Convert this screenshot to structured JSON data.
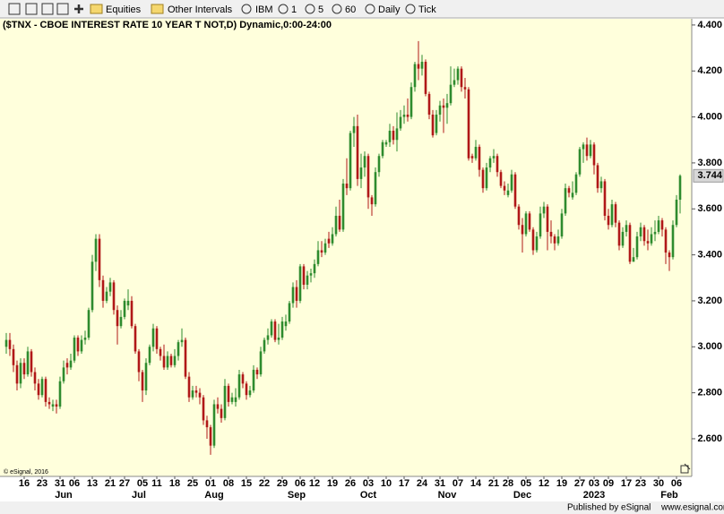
{
  "toolbar": {
    "items": [
      "Equities",
      "Other Intervals",
      "IBM",
      "1",
      "5",
      "60",
      "Daily",
      "Tick"
    ]
  },
  "footer": {
    "publisher": "Published by eSignal",
    "url": "www.esignal.com"
  },
  "chart_data": {
    "type": "candlestick",
    "title": "($TNX - CBOE INTEREST RATE 10 YEAR T NOT,D) Dynamic,0:00-24:00",
    "copyright": "© eSignal, 2016",
    "up_color": "#2e8b2e",
    "down_color": "#b01818",
    "ylim": [
      2.444,
      4.423
    ],
    "yticks": [
      {
        "value": 2.6,
        "label": "2.600"
      },
      {
        "value": 2.8,
        "label": "2.800"
      },
      {
        "value": 3.0,
        "label": "3.000"
      },
      {
        "value": 3.2,
        "label": "3.200"
      },
      {
        "value": 3.4,
        "label": "3.400"
      },
      {
        "value": 3.6,
        "label": "3.600"
      },
      {
        "value": 3.8,
        "label": "3.800"
      },
      {
        "value": 4.0,
        "label": "4.000"
      },
      {
        "value": 4.2,
        "label": "4.200"
      },
      {
        "value": 4.4,
        "label": "4.400"
      }
    ],
    "categories": [
      null,
      null,
      null,
      null,
      null,
      "16",
      null,
      null,
      null,
      null,
      "23",
      null,
      null,
      null,
      null,
      "31",
      null,
      null,
      null,
      "06",
      null,
      null,
      null,
      null,
      "13",
      null,
      null,
      null,
      null,
      "21",
      null,
      null,
      null,
      "27",
      null,
      null,
      null,
      null,
      "05",
      null,
      null,
      null,
      "11",
      null,
      null,
      null,
      null,
      "18",
      null,
      null,
      null,
      null,
      "25",
      null,
      null,
      null,
      null,
      "01",
      null,
      null,
      null,
      null,
      "08",
      null,
      null,
      null,
      null,
      "15",
      null,
      null,
      null,
      null,
      "22",
      null,
      null,
      null,
      null,
      "29",
      null,
      null,
      null,
      null,
      "06",
      null,
      null,
      null,
      "12",
      null,
      null,
      null,
      null,
      "19",
      null,
      null,
      null,
      null,
      "26",
      null,
      null,
      null,
      null,
      "03",
      null,
      null,
      null,
      null,
      "10",
      null,
      null,
      null,
      null,
      "17",
      null,
      null,
      null,
      null,
      "24",
      null,
      null,
      null,
      null,
      "31",
      null,
      null,
      null,
      null,
      "07",
      null,
      null,
      null,
      null,
      "14",
      null,
      null,
      null,
      null,
      "21",
      null,
      null,
      null,
      "28",
      null,
      null,
      null,
      null,
      "05",
      null,
      null,
      null,
      null,
      "12",
      null,
      null,
      null,
      null,
      "19",
      null,
      null,
      null,
      null,
      "27",
      null,
      null,
      null,
      "03",
      null,
      null,
      null,
      "09",
      null,
      null,
      null,
      null,
      "17",
      null,
      null,
      null,
      "23",
      null,
      null,
      null,
      null,
      "30",
      null,
      null,
      null,
      null,
      "06",
      null
    ],
    "months": [
      null,
      null,
      null,
      null,
      null,
      null,
      null,
      null,
      null,
      null,
      null,
      null,
      null,
      null,
      null,
      null,
      "Jun",
      null,
      null,
      null,
      null,
      null,
      null,
      null,
      null,
      null,
      null,
      null,
      null,
      null,
      null,
      null,
      null,
      null,
      null,
      null,
      null,
      "Jul",
      null,
      null,
      null,
      null,
      null,
      null,
      null,
      null,
      null,
      null,
      null,
      null,
      null,
      null,
      null,
      null,
      null,
      null,
      null,
      null,
      "Aug",
      null,
      null,
      null,
      null,
      null,
      null,
      null,
      null,
      null,
      null,
      null,
      null,
      null,
      null,
      null,
      null,
      null,
      null,
      null,
      null,
      null,
      null,
      "Sep",
      null,
      null,
      null,
      null,
      null,
      null,
      null,
      null,
      null,
      null,
      null,
      null,
      null,
      null,
      null,
      null,
      null,
      null,
      null,
      "Oct",
      null,
      null,
      null,
      null,
      null,
      null,
      null,
      null,
      null,
      null,
      null,
      null,
      null,
      null,
      null,
      null,
      null,
      null,
      null,
      null,
      null,
      "Nov",
      null,
      null,
      null,
      null,
      null,
      null,
      null,
      null,
      null,
      null,
      null,
      null,
      null,
      null,
      null,
      null,
      null,
      null,
      null,
      null,
      "Dec",
      null,
      null,
      null,
      null,
      null,
      null,
      null,
      null,
      null,
      null,
      null,
      null,
      null,
      null,
      null,
      null,
      null,
      null,
      null,
      "2023",
      null,
      null,
      null,
      null,
      null,
      null,
      null,
      null,
      null,
      null,
      null,
      null,
      null,
      null,
      null,
      null,
      null,
      null,
      null,
      null,
      "Feb",
      null,
      null,
      null
    ],
    "ohlc": [
      [
        3.0,
        3.06,
        2.97,
        3.03
      ],
      [
        3.03,
        3.06,
        2.96,
        2.99
      ],
      [
        2.99,
        3.01,
        2.89,
        2.92
      ],
      [
        2.92,
        2.94,
        2.81,
        2.84
      ],
      [
        2.84,
        2.95,
        2.82,
        2.93
      ],
      [
        2.93,
        2.95,
        2.86,
        2.88
      ],
      [
        2.88,
        3.0,
        2.87,
        2.98
      ],
      [
        2.98,
        2.99,
        2.87,
        2.89
      ],
      [
        2.89,
        2.91,
        2.81,
        2.84
      ],
      [
        2.84,
        2.86,
        2.77,
        2.79
      ],
      [
        2.79,
        2.87,
        2.78,
        2.86
      ],
      [
        2.86,
        2.87,
        2.74,
        2.76
      ],
      [
        2.76,
        2.78,
        2.73,
        2.75
      ],
      [
        2.74,
        2.77,
        2.72,
        2.75
      ],
      [
        2.75,
        2.77,
        2.71,
        2.74
      ],
      [
        2.74,
        2.87,
        2.73,
        2.85
      ],
      [
        2.85,
        2.94,
        2.84,
        2.91
      ],
      [
        2.93,
        2.95,
        2.88,
        2.91
      ],
      [
        2.91,
        2.97,
        2.9,
        2.94
      ],
      [
        2.94,
        3.05,
        2.93,
        3.04
      ],
      [
        3.04,
        3.05,
        2.96,
        2.98
      ],
      [
        2.98,
        3.05,
        2.97,
        3.03
      ],
      [
        3.03,
        3.07,
        3.01,
        3.04
      ],
      [
        3.04,
        3.17,
        3.03,
        3.16
      ],
      [
        3.16,
        3.4,
        3.15,
        3.37
      ],
      [
        3.37,
        3.49,
        3.33,
        3.47
      ],
      [
        3.47,
        3.49,
        3.26,
        3.29
      ],
      [
        3.29,
        3.31,
        3.17,
        3.2
      ],
      [
        3.2,
        3.26,
        3.19,
        3.24
      ],
      [
        3.24,
        3.3,
        3.22,
        3.28
      ],
      [
        3.28,
        3.29,
        3.14,
        3.16
      ],
      [
        3.16,
        3.18,
        3.01,
        3.09
      ],
      [
        3.09,
        3.16,
        3.08,
        3.13
      ],
      [
        3.13,
        3.21,
        3.12,
        3.2
      ],
      [
        3.18,
        3.25,
        3.16,
        3.2
      ],
      [
        3.2,
        3.22,
        3.08,
        3.09
      ],
      [
        3.09,
        3.1,
        2.97,
        2.98
      ],
      [
        2.98,
        2.99,
        2.85,
        2.89
      ],
      [
        2.89,
        2.9,
        2.76,
        2.81
      ],
      [
        2.81,
        2.95,
        2.79,
        2.93
      ],
      [
        2.93,
        3.01,
        2.92,
        3.0
      ],
      [
        3.0,
        3.1,
        2.98,
        3.08
      ],
      [
        3.08,
        3.09,
        2.97,
        2.99
      ],
      [
        2.99,
        3.0,
        2.94,
        2.96
      ],
      [
        2.96,
        3.01,
        2.9,
        2.91
      ],
      [
        2.91,
        2.98,
        2.9,
        2.96
      ],
      [
        2.96,
        2.97,
        2.91,
        2.92
      ],
      [
        2.92,
        2.99,
        2.91,
        2.96
      ],
      [
        2.96,
        3.03,
        2.94,
        3.02
      ],
      [
        3.02,
        3.08,
        3.0,
        3.03
      ],
      [
        3.03,
        3.04,
        2.86,
        2.87
      ],
      [
        2.87,
        2.89,
        2.76,
        2.78
      ],
      [
        2.78,
        2.83,
        2.77,
        2.81
      ],
      [
        2.81,
        2.83,
        2.78,
        2.8
      ],
      [
        2.8,
        2.82,
        2.75,
        2.78
      ],
      [
        2.78,
        2.79,
        2.66,
        2.68
      ],
      [
        2.68,
        2.7,
        2.6,
        2.65
      ],
      [
        2.65,
        2.66,
        2.53,
        2.57
      ],
      [
        2.57,
        2.77,
        2.56,
        2.75
      ],
      [
        2.75,
        2.78,
        2.71,
        2.73
      ],
      [
        2.73,
        2.75,
        2.67,
        2.69
      ],
      [
        2.69,
        2.86,
        2.68,
        2.83
      ],
      [
        2.83,
        2.84,
        2.74,
        2.76
      ],
      [
        2.76,
        2.8,
        2.75,
        2.78
      ],
      [
        2.76,
        2.82,
        2.74,
        2.78
      ],
      [
        2.78,
        2.9,
        2.77,
        2.88
      ],
      [
        2.88,
        2.89,
        2.82,
        2.84
      ],
      [
        2.84,
        2.85,
        2.77,
        2.79
      ],
      [
        2.79,
        2.83,
        2.78,
        2.81
      ],
      [
        2.81,
        2.92,
        2.8,
        2.9
      ],
      [
        2.9,
        2.91,
        2.86,
        2.88
      ],
      [
        2.88,
        3.0,
        2.87,
        2.98
      ],
      [
        2.98,
        3.04,
        2.97,
        3.03
      ],
      [
        3.03,
        3.08,
        3.01,
        3.05
      ],
      [
        3.05,
        3.12,
        3.04,
        3.11
      ],
      [
        3.11,
        3.12,
        3.02,
        3.03
      ],
      [
        3.03,
        3.1,
        3.01,
        3.04
      ],
      [
        3.04,
        3.13,
        3.03,
        3.11
      ],
      [
        3.09,
        3.14,
        3.07,
        3.11
      ],
      [
        3.11,
        3.2,
        3.1,
        3.19
      ],
      [
        3.19,
        3.28,
        3.17,
        3.26
      ],
      [
        3.26,
        3.29,
        3.17,
        3.2
      ],
      [
        3.2,
        3.36,
        3.19,
        3.35
      ],
      [
        3.35,
        3.36,
        3.25,
        3.27
      ],
      [
        3.27,
        3.33,
        3.25,
        3.31
      ],
      [
        3.31,
        3.34,
        3.28,
        3.32
      ],
      [
        3.32,
        3.38,
        3.3,
        3.36
      ],
      [
        3.36,
        3.46,
        3.35,
        3.42
      ],
      [
        3.42,
        3.46,
        3.39,
        3.41
      ],
      [
        3.41,
        3.47,
        3.4,
        3.45
      ],
      [
        3.47,
        3.5,
        3.43,
        3.45
      ],
      [
        3.45,
        3.52,
        3.44,
        3.49
      ],
      [
        3.49,
        3.61,
        3.48,
        3.57
      ],
      [
        3.57,
        3.64,
        3.5,
        3.51
      ],
      [
        3.51,
        3.73,
        3.5,
        3.71
      ],
      [
        3.71,
        3.82,
        3.66,
        3.69
      ],
      [
        3.69,
        3.94,
        3.68,
        3.93
      ],
      [
        3.93,
        4.0,
        3.87,
        3.96
      ],
      [
        3.96,
        4.01,
        3.7,
        3.73
      ],
      [
        3.73,
        3.84,
        3.69,
        3.78
      ],
      [
        3.78,
        3.85,
        3.74,
        3.83
      ],
      [
        3.83,
        3.84,
        3.6,
        3.65
      ],
      [
        3.65,
        3.66,
        3.57,
        3.62
      ],
      [
        3.62,
        3.78,
        3.61,
        3.76
      ],
      [
        3.76,
        3.84,
        3.74,
        3.83
      ],
      [
        3.83,
        3.9,
        3.82,
        3.89
      ],
      [
        3.88,
        3.9,
        3.87,
        3.89
      ],
      [
        3.89,
        3.97,
        3.87,
        3.94
      ],
      [
        3.94,
        3.96,
        3.88,
        3.9
      ],
      [
        3.9,
        4.02,
        3.85,
        3.95
      ],
      [
        3.95,
        4.03,
        3.94,
        4.0
      ],
      [
        4.0,
        4.05,
        3.97,
        4.01
      ],
      [
        4.01,
        4.08,
        3.98,
        4.0
      ],
      [
        4.0,
        4.15,
        3.99,
        4.13
      ],
      [
        4.13,
        4.24,
        4.11,
        4.23
      ],
      [
        4.23,
        4.33,
        4.16,
        4.21
      ],
      [
        4.21,
        4.27,
        4.18,
        4.24
      ],
      [
        4.24,
        4.25,
        4.09,
        4.1
      ],
      [
        4.1,
        4.11,
        3.99,
        4.01
      ],
      [
        4.01,
        4.03,
        3.91,
        3.92
      ],
      [
        3.93,
        4.03,
        3.92,
        4.01
      ],
      [
        4.01,
        4.07,
        3.98,
        4.05
      ],
      [
        4.05,
        4.08,
        3.93,
        4.04
      ],
      [
        4.04,
        4.1,
        3.97,
        4.06
      ],
      [
        4.06,
        4.22,
        4.05,
        4.14
      ],
      [
        4.14,
        4.21,
        4.13,
        4.16
      ],
      [
        4.16,
        4.22,
        4.14,
        4.21
      ],
      [
        4.21,
        4.22,
        4.11,
        4.13
      ],
      [
        4.13,
        4.17,
        4.08,
        4.12
      ],
      [
        4.12,
        4.13,
        3.81,
        3.82
      ],
      [
        3.83,
        3.84,
        3.8,
        3.82
      ],
      [
        3.82,
        3.9,
        3.81,
        3.87
      ],
      [
        3.87,
        3.88,
        3.74,
        3.77
      ],
      [
        3.77,
        3.78,
        3.67,
        3.69
      ],
      [
        3.69,
        3.8,
        3.68,
        3.78
      ],
      [
        3.78,
        3.83,
        3.76,
        3.82
      ],
      [
        3.82,
        3.86,
        3.8,
        3.83
      ],
      [
        3.83,
        3.84,
        3.74,
        3.76
      ],
      [
        3.76,
        3.77,
        3.69,
        3.7
      ],
      [
        3.7,
        3.72,
        3.66,
        3.68
      ],
      [
        3.66,
        3.71,
        3.65,
        3.68
      ],
      [
        3.68,
        3.77,
        3.67,
        3.75
      ],
      [
        3.75,
        3.76,
        3.6,
        3.61
      ],
      [
        3.61,
        3.62,
        3.51,
        3.53
      ],
      [
        3.53,
        3.56,
        3.41,
        3.49
      ],
      [
        3.49,
        3.59,
        3.48,
        3.58
      ],
      [
        3.58,
        3.59,
        3.5,
        3.51
      ],
      [
        3.51,
        3.52,
        3.4,
        3.42
      ],
      [
        3.42,
        3.5,
        3.41,
        3.48
      ],
      [
        3.48,
        3.61,
        3.47,
        3.58
      ],
      [
        3.58,
        3.63,
        3.56,
        3.61
      ],
      [
        3.61,
        3.62,
        3.42,
        3.5
      ],
      [
        3.5,
        3.55,
        3.45,
        3.48
      ],
      [
        3.48,
        3.49,
        3.42,
        3.45
      ],
      [
        3.45,
        3.51,
        3.44,
        3.48
      ],
      [
        3.48,
        3.6,
        3.47,
        3.58
      ],
      [
        3.58,
        3.71,
        3.57,
        3.69
      ],
      [
        3.69,
        3.7,
        3.65,
        3.67
      ],
      [
        3.65,
        3.72,
        3.64,
        3.67
      ],
      [
        3.67,
        3.76,
        3.66,
        3.75
      ],
      [
        3.75,
        3.87,
        3.74,
        3.86
      ],
      [
        3.86,
        3.89,
        3.8,
        3.88
      ],
      [
        3.88,
        3.91,
        3.81,
        3.83
      ],
      [
        3.83,
        3.9,
        3.82,
        3.88
      ],
      [
        3.88,
        3.89,
        3.75,
        3.79
      ],
      [
        3.79,
        3.8,
        3.67,
        3.69
      ],
      [
        3.69,
        3.74,
        3.67,
        3.72
      ],
      [
        3.72,
        3.73,
        3.55,
        3.57
      ],
      [
        3.57,
        3.6,
        3.51,
        3.53
      ],
      [
        3.53,
        3.64,
        3.52,
        3.62
      ],
      [
        3.62,
        3.63,
        3.52,
        3.54
      ],
      [
        3.54,
        3.55,
        3.42,
        3.44
      ],
      [
        3.44,
        3.52,
        3.43,
        3.5
      ],
      [
        3.5,
        3.55,
        3.48,
        3.53
      ],
      [
        3.53,
        3.54,
        3.36,
        3.37
      ],
      [
        3.37,
        3.43,
        3.37,
        3.39
      ],
      [
        3.39,
        3.5,
        3.38,
        3.48
      ],
      [
        3.48,
        3.54,
        3.46,
        3.52
      ],
      [
        3.52,
        3.53,
        3.44,
        3.46
      ],
      [
        3.46,
        3.51,
        3.42,
        3.45
      ],
      [
        3.45,
        3.52,
        3.44,
        3.49
      ],
      [
        3.49,
        3.55,
        3.46,
        3.5
      ],
      [
        3.5,
        3.57,
        3.49,
        3.55
      ],
      [
        3.55,
        3.56,
        3.48,
        3.51
      ],
      [
        3.51,
        3.52,
        3.36,
        3.41
      ],
      [
        3.41,
        3.42,
        3.33,
        3.39
      ],
      [
        3.39,
        3.55,
        3.38,
        3.53
      ],
      [
        3.53,
        3.66,
        3.52,
        3.64
      ],
      [
        3.64,
        3.75,
        3.58,
        3.744
      ]
    ]
  }
}
